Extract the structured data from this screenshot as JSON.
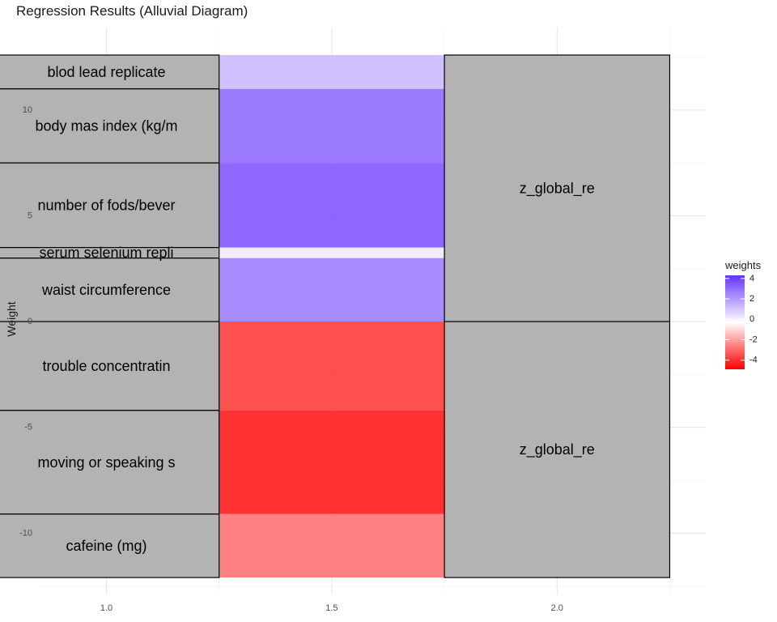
{
  "chart_data": {
    "type": "alluvial",
    "title": "Regression Results (Alluvial Diagram)",
    "xlabel": "",
    "ylabel": "Weight",
    "xlim": [
      0.85,
      2.33
    ],
    "ylim": [
      -12.9,
      13.9
    ],
    "x_ticks": [
      1.0,
      1.5,
      2.0
    ],
    "x_tick_labels": [
      "1.0",
      "1.5",
      "2.0"
    ],
    "y_ticks": [
      -10,
      -5,
      0,
      5,
      10
    ],
    "y_tick_labels": [
      "-10",
      "-5",
      "0",
      "5",
      "10"
    ],
    "grid": true,
    "axis1": {
      "x": 1.0,
      "strata": [
        {
          "label": "blod lead replicate",
          "y_low": 11.0,
          "y_high": 12.6,
          "weight": 1.6
        },
        {
          "label": "body mas index (kg/m",
          "y_low": 7.5,
          "y_high": 11.0,
          "weight": 3.5
        },
        {
          "label": "number of fods/bever",
          "y_low": 3.5,
          "y_high": 7.5,
          "weight": 4.0
        },
        {
          "label": "serum selenium repli",
          "y_low": 3.0,
          "y_high": 3.5,
          "weight": 0.5
        },
        {
          "label": "waist circumference",
          "y_low": 0.0,
          "y_high": 3.0,
          "weight": 3.0
        },
        {
          "label": "trouble concentratin",
          "y_low": -4.2,
          "y_high": 0.0,
          "weight": -4.2
        },
        {
          "label": "moving or speaking s",
          "y_low": -9.1,
          "y_high": -4.2,
          "weight": -4.9
        },
        {
          "label": "cafeine (mg)",
          "y_low": -12.1,
          "y_high": -9.1,
          "weight": -3.0
        }
      ]
    },
    "axis2": {
      "x": 2.0,
      "strata": [
        {
          "label": "z_global_re",
          "y_low": 0.0,
          "y_high": 12.6
        },
        {
          "label": "z_global_re",
          "y_low": -12.1,
          "y_high": 0.0
        }
      ]
    },
    "flows": [
      {
        "from": "blod lead replicate",
        "weight": 1.6
      },
      {
        "from": "body mas index (kg/m",
        "weight": 3.5
      },
      {
        "from": "number of fods/bever",
        "weight": 4.0
      },
      {
        "from": "serum selenium repli",
        "weight": 0.5
      },
      {
        "from": "waist circumference",
        "weight": 3.0
      },
      {
        "from": "trouble concentratin",
        "weight": -4.2
      },
      {
        "from": "moving or speaking s",
        "weight": -4.9
      },
      {
        "from": "cafeine (mg)",
        "weight": -3.0
      }
    ],
    "legend": {
      "title": "weights",
      "position": "right",
      "limits": [
        -4.9,
        4.3
      ],
      "ticks": [
        4,
        2,
        0,
        -2,
        -4
      ],
      "tick_labels": [
        "4",
        "2",
        "0",
        "-2",
        "-4"
      ],
      "low_color": "#ff0000",
      "mid_color": "#ffffff",
      "high_color": "#6633ff"
    },
    "stratum_fill": "#b3b3b3",
    "stratum_border": "#000000"
  }
}
